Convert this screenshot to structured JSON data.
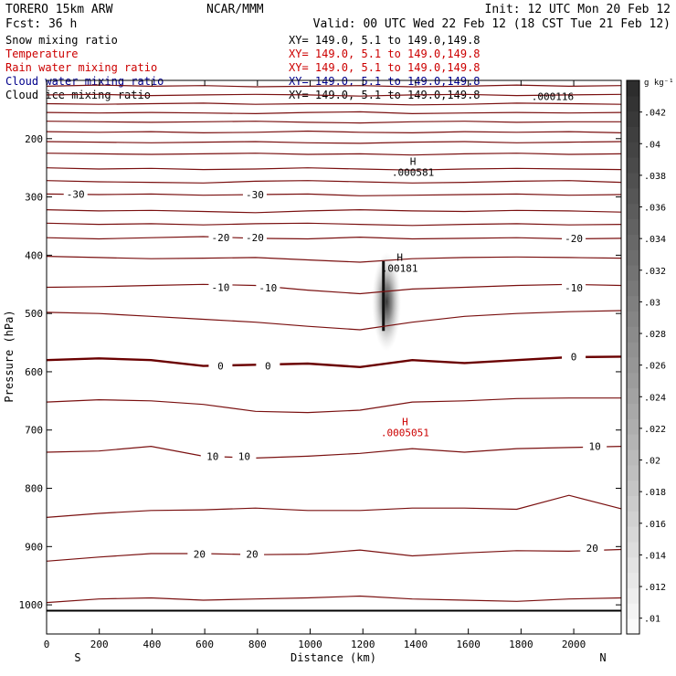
{
  "header": {
    "model": "TORERO   15km ARW",
    "center": "NCAR/MMM",
    "init": "Init: 12 UTC Mon 20 Feb 12",
    "fcst": "Fcst:    36 h",
    "valid": "Valid: 00 UTC Wed 22 Feb 12 (18 CST Tue 21 Feb 12)"
  },
  "fields": [
    {
      "name": "Snow mixing ratio",
      "xy": "XY= 149.0,   5.1 to 149.0,149.8",
      "color": "#000000"
    },
    {
      "name": "Temperature",
      "xy": "XY= 149.0,   5.1 to 149.0,149.8",
      "color": "#cc0000"
    },
    {
      "name": "Rain water mixing ratio",
      "xy": "XY= 149.0,   5.1 to 149.0,149.8",
      "color": "#cc0000"
    },
    {
      "name": "Cloud water mixing ratio",
      "xy": "XY= 149.0,   5.1 to 149.0,149.8",
      "color": "#00008b"
    },
    {
      "name": "Cloud ice mixing ratio",
      "xy": "XY= 149.0,   5.1 to 149.0,149.8",
      "color": "#000000"
    }
  ],
  "colors": {
    "contour": "#7a1010",
    "zero_contour": "#6a0000",
    "axis": "#000000",
    "red_label": "#cc0000"
  },
  "chart_data": {
    "type": "contour cross-section",
    "xlabel": "Distance (km)",
    "ylabel": "Pressure (hPa)",
    "x_end_labels": {
      "left": "S",
      "right": "N"
    },
    "xlim": [
      0,
      2180
    ],
    "ylim": [
      1050,
      100
    ],
    "x_ticks": [
      0,
      200,
      400,
      600,
      800,
      1000,
      1200,
      1400,
      1600,
      1800,
      2000
    ],
    "y_ticks": [
      200,
      300,
      400,
      500,
      600,
      700,
      800,
      900,
      1000
    ],
    "terrain_pressure": 1010,
    "temperature_isotherms": [
      {
        "p": [
          110,
          108,
          110,
          109,
          111,
          110,
          109,
          111,
          110,
          108,
          110,
          109
        ]
      },
      {
        "p": [
          125,
          124,
          126,
          125,
          124,
          125,
          127,
          125,
          124,
          126,
          125,
          124
        ]
      },
      {
        "p": [
          140,
          141,
          140,
          139,
          141,
          140,
          140,
          142,
          141,
          139,
          140,
          141
        ]
      },
      {
        "p": [
          155,
          156,
          155,
          156,
          157,
          155,
          154,
          157,
          156,
          155,
          156,
          155
        ]
      },
      {
        "p": [
          170,
          171,
          172,
          171,
          170,
          172,
          173,
          171,
          170,
          172,
          171,
          171
        ]
      },
      {
        "p": [
          188,
          189,
          188,
          190,
          189,
          187,
          189,
          190,
          188,
          189,
          188,
          190
        ]
      },
      {
        "p": [
          205,
          206,
          207,
          206,
          205,
          207,
          208,
          206,
          205,
          207,
          206,
          205
        ]
      },
      {
        "p": [
          225,
          226,
          227,
          226,
          225,
          227,
          226,
          228,
          226,
          225,
          227,
          226
        ]
      },
      {
        "p": [
          250,
          252,
          251,
          253,
          252,
          250,
          252,
          254,
          252,
          251,
          252,
          253
        ]
      },
      {
        "p": [
          272,
          274,
          275,
          276,
          273,
          272,
          274,
          276,
          275,
          273,
          272,
          275
        ]
      },
      {
        "p": [
          295,
          296,
          295,
          297,
          296,
          295,
          298,
          297,
          296,
          295,
          297,
          296
        ],
        "value": "-30",
        "labels": [
          {
            "x": 110,
            "p": 295
          },
          {
            "x": 790,
            "p": 296
          }
        ]
      },
      {
        "p": [
          322,
          324,
          323,
          325,
          327,
          324,
          322,
          324,
          325,
          323,
          324,
          326
        ]
      },
      {
        "p": [
          345,
          347,
          346,
          348,
          346,
          345,
          347,
          349,
          347,
          346,
          348,
          347
        ]
      },
      {
        "p": [
          370,
          372,
          370,
          368,
          371,
          372,
          369,
          372,
          371,
          370,
          372,
          371
        ],
        "value": "-20",
        "labels": [
          {
            "x": 660,
            "p": 370
          },
          {
            "x": 790,
            "p": 370
          },
          {
            "x": 2000,
            "p": 371
          }
        ]
      },
      {
        "p": [
          402,
          404,
          406,
          405,
          404,
          408,
          412,
          406,
          404,
          403,
          404,
          405
        ]
      },
      {
        "p": [
          455,
          454,
          452,
          450,
          452,
          460,
          466,
          458,
          455,
          452,
          450,
          452
        ],
        "value": "-10",
        "labels": [
          {
            "x": 660,
            "p": 455
          },
          {
            "x": 840,
            "p": 456
          },
          {
            "x": 2000,
            "p": 456
          }
        ]
      },
      {
        "p": [
          498,
          500,
          505,
          510,
          515,
          522,
          528,
          515,
          505,
          500,
          497,
          495
        ]
      },
      {
        "p": [
          580,
          577,
          580,
          590,
          588,
          586,
          592,
          580,
          585,
          580,
          575,
          574
        ],
        "value": "0",
        "bold": true,
        "labels": [
          {
            "x": 660,
            "p": 590
          },
          {
            "x": 840,
            "p": 590
          },
          {
            "x": 2000,
            "p": 574
          }
        ]
      },
      {
        "p": [
          652,
          648,
          650,
          656,
          668,
          670,
          666,
          652,
          650,
          646,
          645,
          645
        ]
      },
      {
        "p": [
          738,
          736,
          728,
          745,
          748,
          745,
          740,
          732,
          738,
          732,
          730,
          728
        ],
        "value": "10",
        "labels": [
          {
            "x": 630,
            "p": 745
          },
          {
            "x": 750,
            "p": 745
          },
          {
            "x": 2080,
            "p": 728
          }
        ]
      },
      {
        "p": [
          850,
          843,
          838,
          837,
          834,
          838,
          838,
          834,
          834,
          836,
          812,
          835
        ]
      },
      {
        "p": [
          925,
          918,
          912,
          912,
          914,
          913,
          906,
          916,
          911,
          907,
          908,
          905
        ],
        "value": "20",
        "labels": [
          {
            "x": 580,
            "p": 913
          },
          {
            "x": 780,
            "p": 913
          },
          {
            "x": 2070,
            "p": 903
          }
        ]
      },
      {
        "p": [
          996,
          990,
          988,
          992,
          990,
          988,
          985,
          990,
          992,
          994,
          990,
          988
        ]
      }
    ],
    "annotations": [
      {
        "text": "H",
        "sub": ".000581",
        "x": 1390,
        "p": 245,
        "color": "#000000"
      },
      {
        "text": "H",
        "sub": ".00181",
        "x": 1340,
        "p": 410,
        "color": "#000000"
      },
      {
        "text": "H",
        "sub": ".0005051",
        "x": 1360,
        "p": 692,
        "color": "#cc0000"
      },
      {
        "text": "",
        "sub": ".000116",
        "x": 1920,
        "p": 115,
        "color": "#000000"
      }
    ],
    "snow_shading": {
      "x_center": 1290,
      "p_center": 480,
      "dx": 55,
      "dp": 85
    },
    "colorbar": {
      "unit": "g kg⁻¹",
      "ticks": [
        ".01",
        ".012",
        ".014",
        ".016",
        ".018",
        ".02",
        ".022",
        ".024",
        ".026",
        ".028",
        ".03",
        ".032",
        ".034",
        ".036",
        ".038",
        ".04",
        ".042"
      ],
      "min": 0.009,
      "max": 0.044
    }
  }
}
